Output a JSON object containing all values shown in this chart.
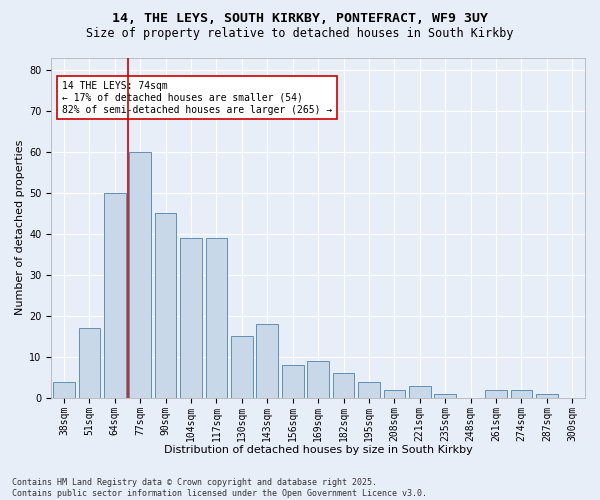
{
  "title_line1": "14, THE LEYS, SOUTH KIRKBY, PONTEFRACT, WF9 3UY",
  "title_line2": "Size of property relative to detached houses in South Kirkby",
  "xlabel": "Distribution of detached houses by size in South Kirkby",
  "ylabel": "Number of detached properties",
  "bar_labels": [
    "38sqm",
    "51sqm",
    "64sqm",
    "77sqm",
    "90sqm",
    "104sqm",
    "117sqm",
    "130sqm",
    "143sqm",
    "156sqm",
    "169sqm",
    "182sqm",
    "195sqm",
    "208sqm",
    "221sqm",
    "235sqm",
    "248sqm",
    "261sqm",
    "274sqm",
    "287sqm",
    "300sqm"
  ],
  "bar_values": [
    4,
    17,
    50,
    60,
    45,
    39,
    39,
    15,
    18,
    8,
    9,
    6,
    4,
    2,
    3,
    1,
    0,
    2,
    2,
    1,
    0
  ],
  "bar_color": "#c8d8e8",
  "bar_edgecolor": "#6090b8",
  "bg_color": "#e8eef8",
  "grid_color": "#ffffff",
  "vline_x_index": 2.5,
  "vline_color": "#cc0000",
  "annotation_text": "14 THE LEYS: 74sqm\n← 17% of detached houses are smaller (54)\n82% of semi-detached houses are larger (265) →",
  "annotation_box_edgecolor": "#cc0000",
  "annotation_box_facecolor": "#ffffff",
  "ylim": [
    0,
    83
  ],
  "yticks": [
    0,
    10,
    20,
    30,
    40,
    50,
    60,
    70,
    80
  ],
  "footer_text": "Contains HM Land Registry data © Crown copyright and database right 2025.\nContains public sector information licensed under the Open Government Licence v3.0.",
  "title_fontsize": 9.5,
  "subtitle_fontsize": 8.5,
  "axis_label_fontsize": 8,
  "tick_fontsize": 7,
  "annotation_fontsize": 7,
  "footer_fontsize": 6
}
